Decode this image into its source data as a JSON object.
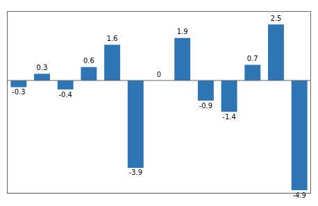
{
  "chart_data": {
    "type": "bar",
    "values": [
      -0.3,
      0.3,
      -0.4,
      0.6,
      1.6,
      -3.9,
      0,
      1.9,
      -0.9,
      -1.4,
      0.7,
      2.5,
      -4.9
    ],
    "color": "#2e75b6",
    "ylim": [
      -5.05,
      3.1
    ],
    "grid": false,
    "data_labels": true,
    "tick_labels": false
  }
}
